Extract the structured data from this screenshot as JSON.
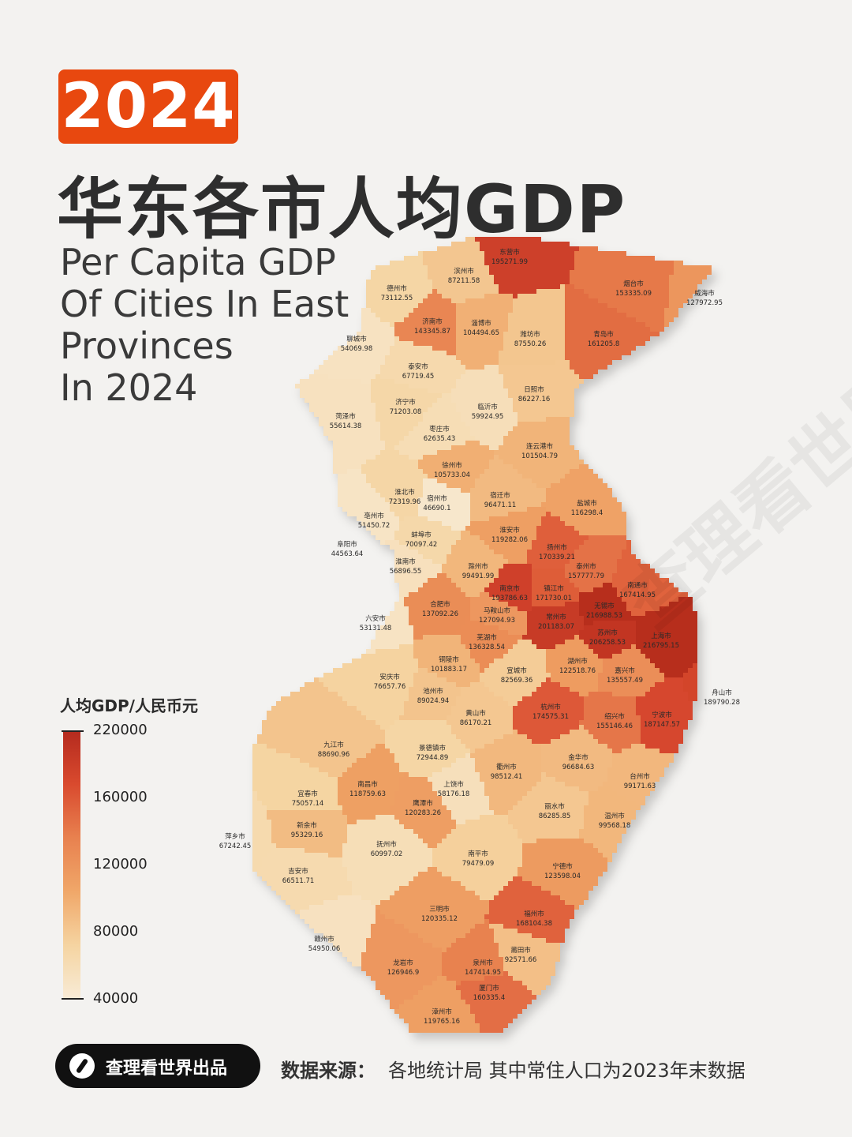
{
  "header": {
    "year": "2024",
    "title_cn": "华东各市人均GDP",
    "title_en_lines": [
      "Per Capita GDP",
      "Of Cities In East",
      "Provinces",
      "In 2024"
    ]
  },
  "legend": {
    "title": "人均GDP/人民币元",
    "labels": [
      "220000",
      "160000",
      "120000",
      "80000",
      "40000"
    ],
    "color_high": "#b42a1e",
    "color_low": "#f8ebd6"
  },
  "cities": [
    {
      "name": "东营市",
      "value": "195271.99"
    },
    {
      "name": "滨州市",
      "value": "87211.58"
    },
    {
      "name": "德州市",
      "value": "73112.55"
    },
    {
      "name": "烟台市",
      "value": "153335.09"
    },
    {
      "name": "威海市",
      "value": "127972.95"
    },
    {
      "name": "济南市",
      "value": "143345.87"
    },
    {
      "name": "淄博市",
      "value": "104494.65"
    },
    {
      "name": "潍坊市",
      "value": "87550.26"
    },
    {
      "name": "青岛市",
      "value": "161205.8"
    },
    {
      "name": "聊城市",
      "value": "54069.98"
    },
    {
      "name": "泰安市",
      "value": "67719.45"
    },
    {
      "name": "日照市",
      "value": "86227.16"
    },
    {
      "name": "济宁市",
      "value": "71203.08"
    },
    {
      "name": "临沂市",
      "value": "59924.95"
    },
    {
      "name": "菏泽市",
      "value": "55614.38"
    },
    {
      "name": "枣庄市",
      "value": "62635.43"
    },
    {
      "name": "连云港市",
      "value": "101504.79"
    },
    {
      "name": "徐州市",
      "value": "105733.04"
    },
    {
      "name": "淮北市",
      "value": "72319.96"
    },
    {
      "name": "宿州市",
      "value": "46690.1"
    },
    {
      "name": "宿迁市",
      "value": "96471.11"
    },
    {
      "name": "盐城市",
      "value": "116298.4"
    },
    {
      "name": "亳州市",
      "value": "51450.72"
    },
    {
      "name": "淮安市",
      "value": "119282.06"
    },
    {
      "name": "蚌埠市",
      "value": "70097.42"
    },
    {
      "name": "阜阳市",
      "value": "44563.64"
    },
    {
      "name": "扬州市",
      "value": "170339.21"
    },
    {
      "name": "淮南市",
      "value": "56896.55"
    },
    {
      "name": "泰州市",
      "value": "157777.79"
    },
    {
      "name": "滁州市",
      "value": "99491.99"
    },
    {
      "name": "南通市",
      "value": "167414.95"
    },
    {
      "name": "南京市",
      "value": "193786.63"
    },
    {
      "name": "镇江市",
      "value": "171730.01"
    },
    {
      "name": "无锡市",
      "value": "216988.53"
    },
    {
      "name": "合肥市",
      "value": "137092.26"
    },
    {
      "name": "常州市",
      "value": "201183.07"
    },
    {
      "name": "马鞍山市",
      "value": "127094.93"
    },
    {
      "name": "六安市",
      "value": "53131.48"
    },
    {
      "name": "苏州市",
      "value": "206258.53"
    },
    {
      "name": "上海市",
      "value": "216795.15"
    },
    {
      "name": "芜湖市",
      "value": "136328.54"
    },
    {
      "name": "湖州市",
      "value": "122518.76"
    },
    {
      "name": "铜陵市",
      "value": "101883.17"
    },
    {
      "name": "嘉兴市",
      "value": "135557.49"
    },
    {
      "name": "宣城市",
      "value": "82569.36"
    },
    {
      "name": "安庆市",
      "value": "76657.76"
    },
    {
      "name": "舟山市",
      "value": "189790.28"
    },
    {
      "name": "池州市",
      "value": "89024.94"
    },
    {
      "name": "杭州市",
      "value": "174575.31"
    },
    {
      "name": "绍兴市",
      "value": "155146.46"
    },
    {
      "name": "宁波市",
      "value": "187147.57"
    },
    {
      "name": "黄山市",
      "value": "86170.21"
    },
    {
      "name": "九江市",
      "value": "88690.96"
    },
    {
      "name": "景德镇市",
      "value": "72944.89"
    },
    {
      "name": "衢州市",
      "value": "98512.41"
    },
    {
      "name": "金华市",
      "value": "96684.63"
    },
    {
      "name": "南昌市",
      "value": "118759.63"
    },
    {
      "name": "宜春市",
      "value": "75057.14"
    },
    {
      "name": "上饶市",
      "value": "58176.18"
    },
    {
      "name": "台州市",
      "value": "99171.63"
    },
    {
      "name": "鹰潭市",
      "value": "120283.26"
    },
    {
      "name": "丽水市",
      "value": "86285.85"
    },
    {
      "name": "新余市",
      "value": "95329.16"
    },
    {
      "name": "温州市",
      "value": "99568.18"
    },
    {
      "name": "萍乡市",
      "value": "67242.45"
    },
    {
      "name": "抚州市",
      "value": "60997.02"
    },
    {
      "name": "南平市",
      "value": "79479.09"
    },
    {
      "name": "吉安市",
      "value": "66511.71"
    },
    {
      "name": "宁德市",
      "value": "123598.04"
    },
    {
      "name": "三明市",
      "value": "120335.12"
    },
    {
      "name": "福州市",
      "value": "168104.38"
    },
    {
      "name": "赣州市",
      "value": "54950.06"
    },
    {
      "name": "莆田市",
      "value": "92571.66"
    },
    {
      "name": "龙岩市",
      "value": "126946.9"
    },
    {
      "name": "泉州市",
      "value": "147414.95"
    },
    {
      "name": "厦门市",
      "value": "160335.4"
    },
    {
      "name": "漳州市",
      "value": "119765.16"
    }
  ],
  "watermark": "查理看世界",
  "footer": {
    "brand": "查理看世界出品",
    "source_label": "数据来源：",
    "source_text": "各地统计局  其中常住人口为2023年末数据"
  }
}
